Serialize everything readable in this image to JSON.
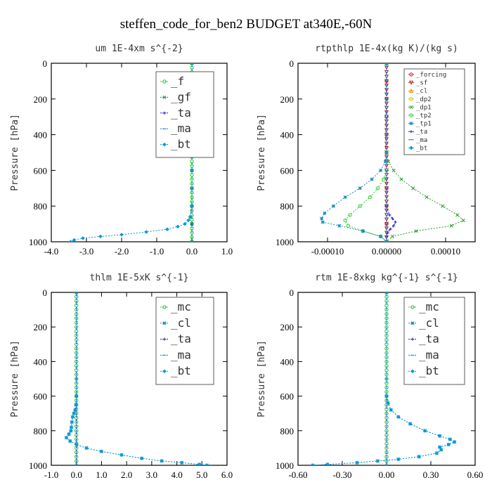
{
  "figure": {
    "title": "steffen_code_for_ben2  BUDGET at340E,-60N"
  },
  "chart_data": [
    {
      "type": "line",
      "title": "um  1E-4xm s^{-2}",
      "ylabel": "Pressure [hPa]",
      "xlim": [
        -4.0,
        1.0
      ],
      "ylim": [
        1000,
        0
      ],
      "xticks": [
        "-4.0",
        "-3.0",
        "-2.0",
        "-1.0",
        "0.0",
        "1.0"
      ],
      "xtick_values": [
        -4,
        -3,
        -2,
        -1,
        0,
        1
      ],
      "yticks": [
        "0",
        "200",
        "400",
        "600",
        "800",
        "1000"
      ],
      "ytick_values": [
        0,
        200,
        400,
        600,
        800,
        1000
      ],
      "legend_position": "top-right",
      "series": [
        {
          "name": "_f",
          "color": "#22cc22",
          "marker": "o",
          "y": [
            0,
            25,
            50,
            75,
            100,
            125,
            150,
            175,
            200,
            225,
            250,
            275,
            300,
            325,
            350,
            375,
            400,
            425,
            450,
            475,
            500,
            525,
            550,
            575,
            600,
            625,
            650,
            675,
            700,
            725,
            750,
            775,
            800,
            825,
            850,
            875,
            900,
            925,
            950,
            975,
            1000
          ],
          "x": [
            0,
            0,
            0,
            0,
            0,
            0,
            0,
            0,
            0,
            0,
            0,
            0,
            0,
            0,
            0,
            0,
            0,
            0,
            0,
            0,
            0,
            0,
            0,
            0,
            0,
            0,
            0,
            0,
            0,
            0,
            0,
            0,
            0,
            0,
            0,
            0,
            0,
            0,
            0,
            0,
            0
          ]
        },
        {
          "name": "_gf",
          "color": "#1a8a7a",
          "marker": "x",
          "y": [
            0,
            100,
            200,
            300,
            400,
            500,
            600,
            700,
            800,
            900,
            1000
          ],
          "x": [
            0,
            0,
            0,
            0,
            0,
            0,
            0,
            0,
            0,
            0,
            0
          ]
        },
        {
          "name": "_ta",
          "color": "#2222cc",
          "marker": "+",
          "y": [
            0,
            100,
            200,
            300,
            400,
            500,
            600,
            700,
            800,
            900,
            1000
          ],
          "x": [
            0,
            0,
            0,
            0,
            0,
            0,
            0,
            0,
            0,
            0,
            0
          ]
        },
        {
          "name": "_ma",
          "color": "#1a7ad0",
          "marker": "-",
          "y": [
            0,
            100,
            200,
            300,
            400,
            500,
            600,
            700,
            800,
            900,
            1000
          ],
          "x": [
            0,
            0,
            0,
            0,
            0,
            0,
            0,
            0,
            0,
            0,
            0
          ]
        },
        {
          "name": "_bt",
          "color": "#0099dd",
          "marker": "d",
          "y": [
            0,
            100,
            200,
            300,
            400,
            500,
            600,
            700,
            800,
            860,
            880,
            900,
            915,
            930,
            945,
            960,
            970,
            980,
            990,
            1000
          ],
          "x": [
            0,
            0,
            0,
            0,
            0,
            0,
            0,
            0,
            -0.01,
            -0.05,
            -0.1,
            -0.2,
            -0.4,
            -0.7,
            -1.3,
            -2.0,
            -2.6,
            -3.1,
            -3.35,
            -3.45
          ]
        }
      ]
    },
    {
      "type": "line",
      "title": "rtpthlp  1E-4x(kg K)/(kg s)",
      "ylabel": "Pressure [hPa]",
      "xlim": [
        -0.00015,
        0.00015
      ],
      "ylim": [
        1000,
        0
      ],
      "xticks": [
        "-0.00010",
        "0.00000",
        "0.00010"
      ],
      "xtick_values": [
        -0.0001,
        0,
        0.0001
      ],
      "yticks": [
        "0",
        "200",
        "400",
        "600",
        "800",
        "1000"
      ],
      "ytick_values": [
        0,
        200,
        400,
        600,
        800,
        1000
      ],
      "legend_position": "top-right",
      "series": [
        {
          "name": "_forcing",
          "color": "#cc2222",
          "marker": "o",
          "y": [
            0,
            100,
            200,
            300,
            400,
            500,
            600,
            700,
            800,
            900,
            1000
          ],
          "x": [
            0,
            0,
            0,
            0,
            0,
            0,
            0,
            0,
            0,
            0,
            0
          ]
        },
        {
          "name": "_sf",
          "color": "#cc1111",
          "marker": "v",
          "y": [
            0,
            25,
            50,
            75,
            100,
            125,
            150,
            175,
            200,
            225,
            250,
            275,
            300,
            325,
            350,
            375,
            400,
            425,
            450,
            475,
            500,
            525,
            550,
            575,
            600,
            625,
            650,
            675,
            700,
            725,
            750,
            775,
            800,
            825,
            850,
            875,
            900,
            925,
            950,
            975,
            1000
          ],
          "x": [
            0,
            0,
            0,
            0,
            0,
            0,
            0,
            0,
            0,
            0,
            0,
            0,
            0,
            0,
            0,
            0,
            0,
            0,
            0,
            0,
            0,
            0,
            0,
            0,
            0,
            0,
            0,
            0,
            0,
            0,
            0,
            0,
            0,
            0,
            0,
            0,
            0,
            0,
            0,
            0,
            0
          ]
        },
        {
          "name": "_cl",
          "color": "#ee8800",
          "marker": "^",
          "y": [
            0,
            500,
            1000
          ],
          "x": [
            0,
            0,
            0
          ]
        },
        {
          "name": "_dp2",
          "color": "#cccc00",
          "marker": "o",
          "y": [
            0,
            500,
            1000
          ],
          "x": [
            0,
            0,
            0
          ]
        },
        {
          "name": "_dp1",
          "color": "#229922",
          "marker": "x",
          "y": [
            0,
            500,
            550,
            600,
            650,
            700,
            750,
            800,
            850,
            880,
            910,
            940,
            970,
            1000
          ],
          "x": [
            0,
            0,
            3e-06,
            1.2e-05,
            2.5e-05,
            4.5e-05,
            6.8e-05,
            9.5e-05,
            0.00012,
            0.00013,
            0.00011,
            5e-05,
            1e-05,
            0
          ]
        },
        {
          "name": "_tp2",
          "color": "#33cc33",
          "marker": "o",
          "y": [
            0,
            600,
            650,
            700,
            750,
            800,
            850,
            880,
            910,
            940,
            970,
            1000
          ],
          "x": [
            0,
            0,
            -5e-06,
            -1.5e-05,
            -2.8e-05,
            -4.5e-05,
            -6.2e-05,
            -7e-05,
            -6.5e-05,
            -4e-05,
            -1e-05,
            0
          ]
        },
        {
          "name": "_tp1",
          "color": "#1a8abb",
          "marker": "*",
          "y": [
            0,
            550,
            600,
            650,
            700,
            750,
            800,
            840,
            870,
            890,
            910,
            940,
            970,
            1000
          ],
          "x": [
            0,
            -2e-06,
            -1e-05,
            -2.5e-05,
            -4.5e-05,
            -7e-05,
            -9e-05,
            -0.000105,
            -0.00011,
            -0.000108,
            -8e-05,
            -4e-05,
            -1e-05,
            0
          ]
        },
        {
          "name": "_ta",
          "color": "#2222cc",
          "marker": "+",
          "y": [
            0,
            800,
            850,
            870,
            890,
            910,
            930,
            950,
            970,
            1000
          ],
          "x": [
            0,
            0,
            5e-06,
            1e-05,
            1.5e-05,
            1.2e-05,
            6e-06,
            2e-06,
            0,
            0
          ]
        },
        {
          "name": "_ma",
          "color": "#1a7ad0",
          "marker": "-",
          "y": [
            0,
            500,
            1000
          ],
          "x": [
            0,
            0,
            0
          ]
        },
        {
          "name": "_bt",
          "color": "#0099dd",
          "marker": "d",
          "y": [
            0,
            500,
            1000
          ],
          "x": [
            0,
            0,
            0
          ]
        }
      ]
    },
    {
      "type": "line",
      "title": "thlm  1E-5xK s^{-1}",
      "ylabel": "Pressure [hPa]",
      "xlim": [
        -1.0,
        6.0
      ],
      "ylim": [
        1000,
        0
      ],
      "xticks": [
        "-1.0",
        "0.0",
        "1.0",
        "2.0",
        "3.0",
        "4.0",
        "5.0",
        "6.0"
      ],
      "xtick_values": [
        -1,
        0,
        1,
        2,
        3,
        4,
        5,
        6
      ],
      "yticks": [
        "0",
        "200",
        "400",
        "600",
        "800",
        "1000"
      ],
      "ytick_values": [
        0,
        200,
        400,
        600,
        800,
        1000
      ],
      "legend_position": "top-right",
      "series": [
        {
          "name": "_mc",
          "color": "#22cc22",
          "marker": "o",
          "y": [
            0,
            25,
            50,
            75,
            100,
            125,
            150,
            175,
            200,
            225,
            250,
            275,
            300,
            325,
            350,
            375,
            400,
            425,
            450,
            475,
            500,
            525,
            550,
            575,
            600,
            625,
            650,
            675,
            700,
            725,
            750,
            775,
            800,
            825,
            850,
            875,
            900,
            925,
            950,
            975,
            1000
          ],
          "x": [
            0,
            0,
            0,
            0,
            0,
            0,
            0,
            0,
            0,
            0,
            0,
            0,
            0,
            0,
            0,
            0,
            0,
            0,
            0,
            0,
            0,
            0,
            0,
            0,
            0,
            0,
            0,
            0,
            0,
            0,
            0,
            0,
            0,
            0,
            0,
            0,
            0,
            0,
            0,
            0,
            0
          ]
        },
        {
          "name": "_cl",
          "color": "#1a8abb",
          "marker": "*",
          "y": [
            0,
            600,
            650,
            680,
            700,
            720,
            750,
            780,
            800,
            820,
            840,
            860,
            880,
            900,
            920,
            940,
            960,
            975,
            985,
            995,
            1000
          ],
          "x": [
            0,
            0,
            -0.02,
            -0.05,
            -0.1,
            -0.15,
            -0.18,
            -0.2,
            -0.22,
            -0.3,
            -0.4,
            -0.25,
            0.0,
            0.4,
            1.0,
            1.8,
            2.6,
            3.4,
            4.2,
            4.9,
            5.2
          ]
        },
        {
          "name": "_ta",
          "color": "#2222cc",
          "marker": "+",
          "y": [
            0,
            500,
            1000
          ],
          "x": [
            0,
            0,
            0
          ]
        },
        {
          "name": "_ma",
          "color": "#1a7ad0",
          "marker": "-",
          "y": [
            0,
            500,
            1000
          ],
          "x": [
            0,
            0,
            0
          ]
        },
        {
          "name": "_bt",
          "color": "#0099dd",
          "marker": "d",
          "y": [
            0,
            600,
            650,
            680,
            700,
            720,
            750,
            780,
            800,
            820,
            840,
            860,
            880,
            900,
            920,
            940,
            960,
            975,
            985,
            995,
            1000
          ],
          "x": [
            0,
            0,
            -0.02,
            -0.05,
            -0.1,
            -0.15,
            -0.18,
            -0.2,
            -0.22,
            -0.3,
            -0.4,
            -0.25,
            0.0,
            0.4,
            1.0,
            1.8,
            2.6,
            3.4,
            4.2,
            4.9,
            5.2
          ]
        }
      ]
    },
    {
      "type": "line",
      "title": "rtm  1E-8xkg kg^{-1} s^{-1}",
      "ylabel": "Pressure [hPa]",
      "xlim": [
        -0.6,
        0.6
      ],
      "ylim": [
        1000,
        0
      ],
      "xticks": [
        "-0.60",
        "-0.30",
        "0.00",
        "0.30",
        "0.60"
      ],
      "xtick_values": [
        -0.6,
        -0.3,
        0,
        0.3,
        0.6
      ],
      "yticks": [
        "0",
        "200",
        "400",
        "600",
        "800",
        "1000"
      ],
      "ytick_values": [
        0,
        200,
        400,
        600,
        800,
        1000
      ],
      "legend_position": "top-right",
      "series": [
        {
          "name": "_mc",
          "color": "#22cc22",
          "marker": "o",
          "y": [
            0,
            25,
            50,
            75,
            100,
            125,
            150,
            175,
            200,
            225,
            250,
            275,
            300,
            325,
            350,
            375,
            400,
            425,
            450,
            475,
            500,
            525,
            550,
            575,
            600,
            625,
            650,
            675,
            700,
            725,
            750,
            775,
            800,
            825,
            850,
            875,
            900,
            925,
            950,
            975,
            1000
          ],
          "x": [
            0,
            0,
            0,
            0,
            0,
            0,
            0,
            0,
            0,
            0,
            0,
            0,
            0,
            0,
            0,
            0,
            0,
            0,
            0,
            0,
            0,
            0,
            0,
            0,
            0,
            0,
            0,
            0,
            0,
            0,
            0,
            0,
            0,
            0,
            0,
            0,
            0,
            0,
            0,
            0,
            0
          ]
        },
        {
          "name": "_cl",
          "color": "#1a8abb",
          "marker": "*",
          "y": [
            0,
            600,
            640,
            680,
            720,
            760,
            800,
            830,
            850,
            865,
            880,
            895,
            910,
            930,
            950,
            965,
            975,
            985,
            995,
            1000
          ],
          "x": [
            0,
            0,
            0.01,
            0.03,
            0.08,
            0.16,
            0.26,
            0.36,
            0.43,
            0.46,
            0.42,
            0.36,
            0.37,
            0.34,
            0.22,
            0.08,
            -0.06,
            -0.2,
            -0.4,
            -0.5
          ]
        },
        {
          "name": "_ta",
          "color": "#2222cc",
          "marker": "+",
          "y": [
            0,
            500,
            1000
          ],
          "x": [
            0,
            0,
            0
          ]
        },
        {
          "name": "_ma",
          "color": "#1a7ad0",
          "marker": "-",
          "y": [
            0,
            500,
            1000
          ],
          "x": [
            0,
            0,
            0
          ]
        },
        {
          "name": "_bt",
          "color": "#0099dd",
          "marker": "d",
          "y": [
            0,
            600,
            640,
            680,
            720,
            760,
            800,
            830,
            850,
            865,
            880,
            895,
            910,
            930,
            950,
            965,
            975,
            985,
            995,
            1000
          ],
          "x": [
            0,
            0,
            0.01,
            0.03,
            0.08,
            0.16,
            0.26,
            0.36,
            0.43,
            0.46,
            0.42,
            0.36,
            0.37,
            0.34,
            0.22,
            0.08,
            -0.06,
            -0.2,
            -0.4,
            -0.5
          ]
        }
      ]
    }
  ]
}
